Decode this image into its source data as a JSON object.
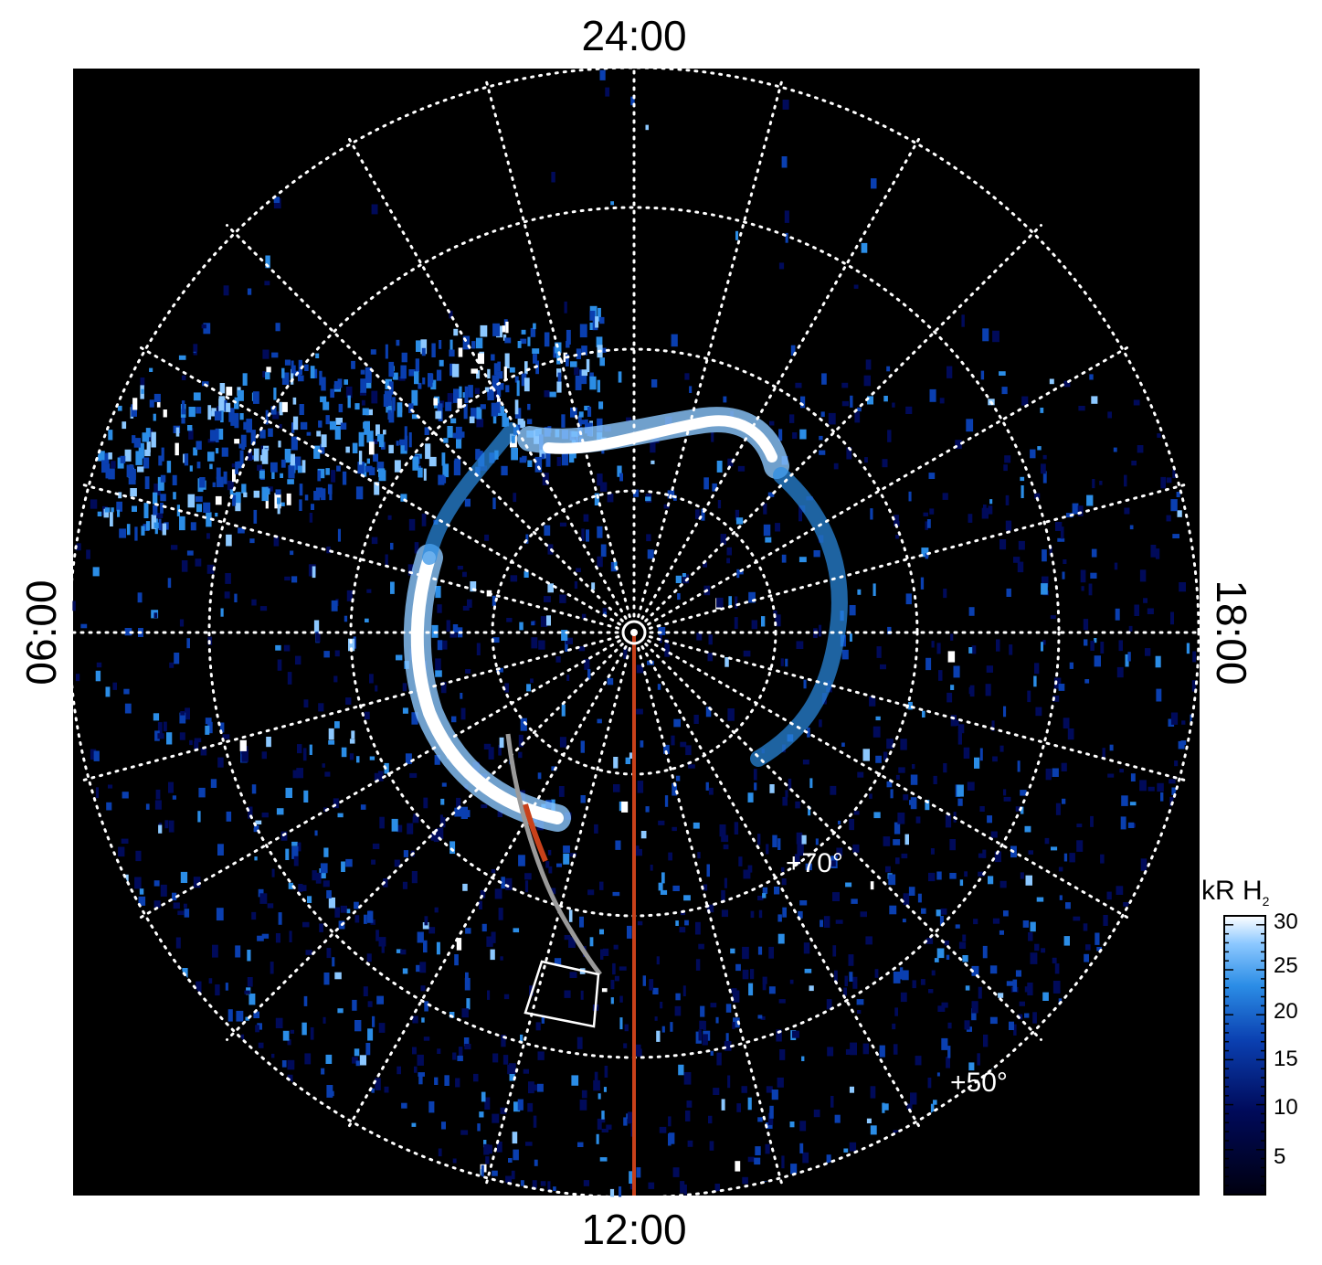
{
  "image": {
    "description_free": true,
    "background_color": "#000000",
    "aurora_colormap": [
      "#000010",
      "#000a5a",
      "#0a3fb0",
      "#2b8de6",
      "#8cc8ff",
      "#ffffff"
    ]
  },
  "local_time_labels": {
    "top": "24:00",
    "bottom": "12:00",
    "left": "06:00",
    "right": "18:00"
  },
  "latitude_labels": {
    "inner": "+70°",
    "outer": "+50°"
  },
  "colorbar": {
    "title_main": "kR H",
    "title_sub": "2",
    "ticks": [
      "30",
      "25",
      "20",
      "15",
      "10",
      "5"
    ],
    "range": [
      0,
      31
    ]
  },
  "overlay_colors": {
    "meridian_line": "#c8411a",
    "footprint_track": "#9a9a9a",
    "footprint_highlight": "#c8411a",
    "box_outline": "#ffffff",
    "grid": "#ffffff"
  }
}
